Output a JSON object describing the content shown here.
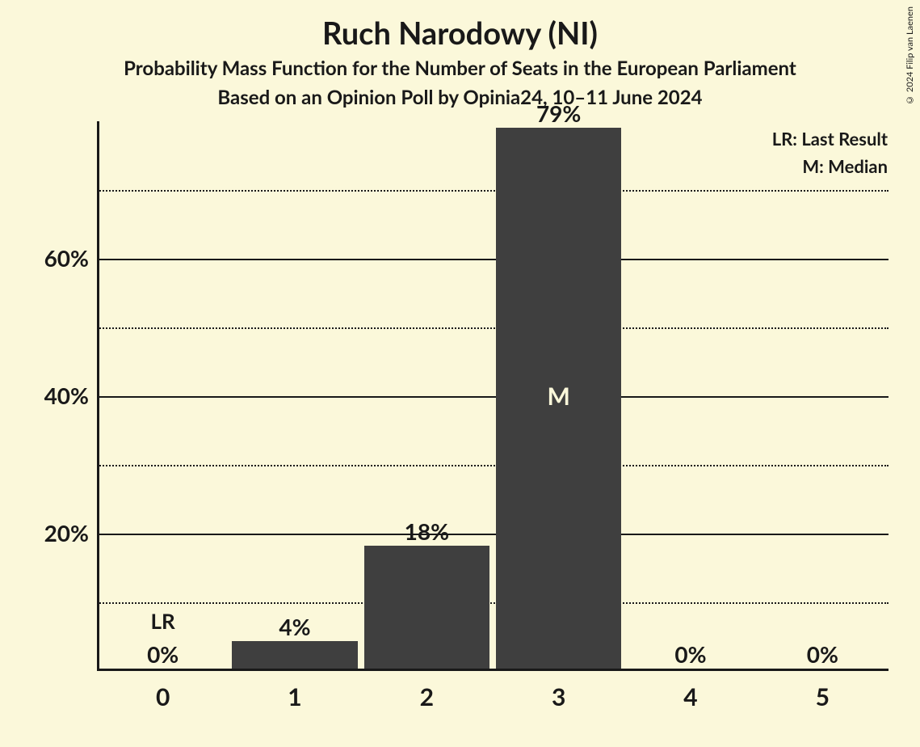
{
  "title": "Ruch Narodowy (NI)",
  "subtitle1": "Probability Mass Function for the Number of Seats in the European Parliament",
  "subtitle2": "Based on an Opinion Poll by Opinia24, 10–11 June 2024",
  "copyright": "© 2024 Filip van Laenen",
  "legend": {
    "lr": "LR: Last Result",
    "m": "M: Median"
  },
  "chart": {
    "type": "bar",
    "background_color": "#fbf8da",
    "bar_color": "#3f3f3f",
    "axis_color": "#191919",
    "text_color": "#191919",
    "median_text_color": "#fbf8da",
    "categories": [
      "0",
      "1",
      "2",
      "3",
      "4",
      "5"
    ],
    "values": [
      0,
      4,
      18,
      79,
      0,
      0
    ],
    "value_labels": [
      "0%",
      "4%",
      "18%",
      "79%",
      "0%",
      "0%"
    ],
    "lr_index": 0,
    "lr_text": "LR",
    "median_index": 3,
    "median_text": "M",
    "ylim": [
      0,
      80
    ],
    "y_major_ticks": [
      20,
      40,
      60
    ],
    "y_major_labels": [
      "20%",
      "40%",
      "60%"
    ],
    "y_minor_ticks": [
      10,
      30,
      50,
      70
    ],
    "bar_width_ratio": 0.95,
    "title_fontsize": 38,
    "subtitle_fontsize": 24,
    "axis_label_fontsize": 28,
    "value_label_fontsize": 28
  }
}
